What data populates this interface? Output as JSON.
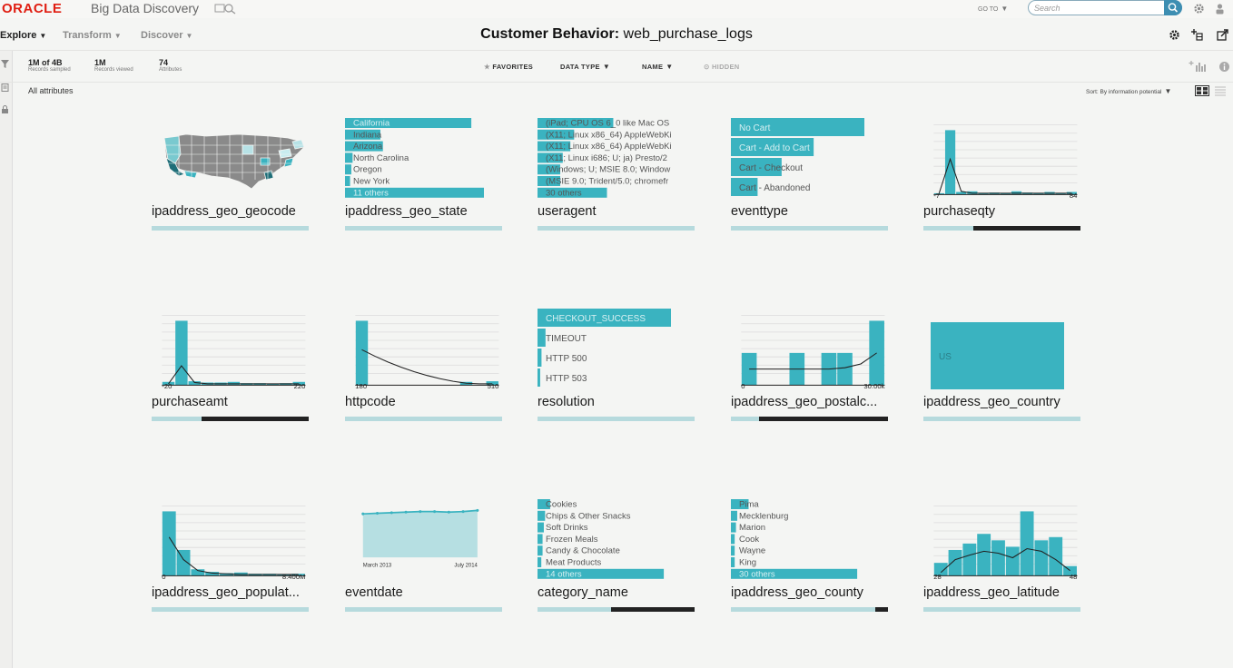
{
  "header": {
    "logo": "ORACLE",
    "product": "Big Data Discovery",
    "goto": "GO TO",
    "search_placeholder": "Search"
  },
  "nav": {
    "items": [
      {
        "label": "Explore",
        "active": true
      },
      {
        "label": "Transform",
        "active": false
      },
      {
        "label": "Discover",
        "active": false
      }
    ]
  },
  "page": {
    "title_bold": "Customer Behavior:",
    "title_rest": " web_purchase_logs"
  },
  "stats": [
    {
      "value": "1M of 4B",
      "label": "Records sampled"
    },
    {
      "value": "1M",
      "label": "Records viewed"
    },
    {
      "value": "74",
      "label": "Attributes"
    }
  ],
  "filters": {
    "favorites": "FAVORITES",
    "data_type": "DATA TYPE",
    "name": "NAME",
    "hidden": "HIDDEN"
  },
  "list": {
    "heading": "All attributes",
    "sort": "Sort: By information potential"
  },
  "colors": {
    "accent": "#3ab3c0",
    "bar_light": "#b6dadd",
    "map_gray": "#8a8a8a",
    "oracle_red": "#e01e12"
  },
  "cards": [
    {
      "name": "ipaddress_geo_geocode",
      "type": "map",
      "quality": 0
    },
    {
      "name": "ipaddress_geo_state",
      "type": "hbar",
      "quality": 0,
      "items": [
        {
          "label": "California",
          "value": 1.0
        },
        {
          "label": "Indiana",
          "value": 0.28
        },
        {
          "label": "Arizona",
          "value": 0.3
        },
        {
          "label": "North Carolina",
          "value": 0.06
        },
        {
          "label": "Oregon",
          "value": 0.05
        },
        {
          "label": "New York",
          "value": 0.04
        },
        {
          "label": "11 others",
          "value": 1.1
        }
      ]
    },
    {
      "name": "useragent",
      "type": "hbar",
      "quality": 0,
      "items": [
        {
          "label": "(iPad; CPU OS 6_0 like Mac OS",
          "value": 0.6
        },
        {
          "label": "(X11; Linux x86_64) AppleWebKi",
          "value": 0.29
        },
        {
          "label": "(X11; Linux x86_64) AppleWebKi",
          "value": 0.26
        },
        {
          "label": "(X11; Linux i686; U; ja) Presto/2",
          "value": 0.2
        },
        {
          "label": "(Windows; U; MSIE 8.0; Window",
          "value": 0.18
        },
        {
          "label": "(MSIE 9.0; Trident/5.0; chromefr",
          "value": 0.18
        },
        {
          "label": "30 others",
          "value": 0.55
        }
      ]
    },
    {
      "name": "eventtype",
      "type": "hbar4",
      "quality": 0,
      "items": [
        {
          "label": "No Cart",
          "value": 1.0
        },
        {
          "label": "Cart - Add to Cart",
          "value": 0.62
        },
        {
          "label": "Cart - Checkout",
          "value": 0.38
        },
        {
          "label": "Cart - Abandoned",
          "value": 0.2
        }
      ]
    },
    {
      "name": "purchaseqty",
      "type": "hist",
      "quality": 0.68,
      "xmin": "-7",
      "xmax": "84",
      "values": [
        0.02,
        1.0,
        0.04,
        0.05,
        0.02,
        0.03,
        0.02,
        0.05,
        0.03,
        0.02,
        0.04,
        0.02,
        0.04
      ],
      "curve": [
        0.02,
        0.55,
        0.05,
        0.02,
        0.02,
        0.02,
        0.02,
        0.02,
        0.02,
        0.02,
        0.02,
        0.02,
        0.02
      ]
    },
    {
      "name": "purchaseamt",
      "type": "hist",
      "quality": 0.68,
      "xmin": "-20",
      "xmax": "220",
      "values": [
        0.05,
        1.0,
        0.06,
        0.04,
        0.04,
        0.05,
        0.03,
        0.03,
        0.02,
        0.03,
        0.05
      ],
      "curve": [
        0.02,
        0.3,
        0.04,
        0.02,
        0.02,
        0.02,
        0.02,
        0.02,
        0.02,
        0.02,
        0.02
      ]
    },
    {
      "name": "httpcode",
      "type": "hist",
      "quality": 0,
      "xmin": "180",
      "xmax": "510",
      "values": [
        1.0,
        0,
        0,
        0,
        0,
        0,
        0,
        0,
        0.05,
        0,
        0.06
      ],
      "curve": [
        0.55,
        0.45,
        0.36,
        0.28,
        0.21,
        0.15,
        0.1,
        0.06,
        0.03,
        0.02,
        0.02
      ]
    },
    {
      "name": "resolution",
      "type": "hbar4",
      "quality": 0,
      "items": [
        {
          "label": "CHECKOUT_SUCCESS",
          "value": 1.0
        },
        {
          "label": "TIMEOUT",
          "value": 0.06
        },
        {
          "label": "HTTP 500",
          "value": 0.03
        },
        {
          "label": "HTTP 503",
          "value": 0.02
        }
      ]
    },
    {
      "name": "ipaddress_geo_postalc...",
      "type": "hist",
      "quality": 0.82,
      "xmin": "0",
      "xmax": "30.00k",
      "values": [
        0.5,
        0,
        0,
        0.5,
        0,
        0.5,
        0.5,
        0,
        1.0
      ],
      "curve": [
        0.25,
        0.25,
        0.25,
        0.25,
        0.25,
        0.25,
        0.27,
        0.33,
        0.5
      ]
    },
    {
      "name": "ipaddress_geo_country",
      "type": "block",
      "quality": 0,
      "label": "US"
    },
    {
      "name": "ipaddress_geo_populat...",
      "type": "hist",
      "quality": 0,
      "xmin": "0",
      "xmax": "8.400M",
      "values": [
        1.0,
        0.4,
        0.1,
        0.06,
        0.04,
        0.05,
        0.03,
        0.03,
        0.02,
        0.03
      ],
      "curve": [
        0.6,
        0.25,
        0.08,
        0.04,
        0.03,
        0.02,
        0.02,
        0.02,
        0.02,
        0.02
      ]
    },
    {
      "name": "eventdate",
      "type": "area",
      "quality": 0,
      "xmin": "March 2013",
      "xmax": "July 2014",
      "values": [
        0.76,
        0.77,
        0.78,
        0.79,
        0.8,
        0.8,
        0.79,
        0.8,
        0.82
      ]
    },
    {
      "name": "category_name",
      "type": "hbar",
      "quality": 0.53,
      "items": [
        {
          "label": "Cookies",
          "value": 0.1
        },
        {
          "label": "Chips & Other Snacks",
          "value": 0.06
        },
        {
          "label": "Soft Drinks",
          "value": 0.05
        },
        {
          "label": "Frozen Meals",
          "value": 0.04
        },
        {
          "label": "Candy & Chocolate",
          "value": 0.04
        },
        {
          "label": "Meat Products",
          "value": 0.03
        },
        {
          "label": "14 others",
          "value": 1.0
        }
      ]
    },
    {
      "name": "ipaddress_geo_county",
      "type": "hbar",
      "quality": 0.08,
      "items": [
        {
          "label": "Pima",
          "value": 0.14
        },
        {
          "label": "Mecklenburg",
          "value": 0.05
        },
        {
          "label": "Marion",
          "value": 0.04
        },
        {
          "label": "Cook",
          "value": 0.03
        },
        {
          "label": "Wayne",
          "value": 0.03
        },
        {
          "label": "King",
          "value": 0.03
        },
        {
          "label": "30 others",
          "value": 1.0
        }
      ]
    },
    {
      "name": "ipaddress_geo_latitude",
      "type": "hist",
      "quality": 0,
      "xmin": "28",
      "xmax": "48",
      "values": [
        0.2,
        0.4,
        0.5,
        0.65,
        0.55,
        0.45,
        1.0,
        0.55,
        0.6,
        0.15
      ],
      "curve": [
        0.05,
        0.25,
        0.32,
        0.38,
        0.35,
        0.28,
        0.42,
        0.38,
        0.25,
        0.08
      ]
    }
  ]
}
